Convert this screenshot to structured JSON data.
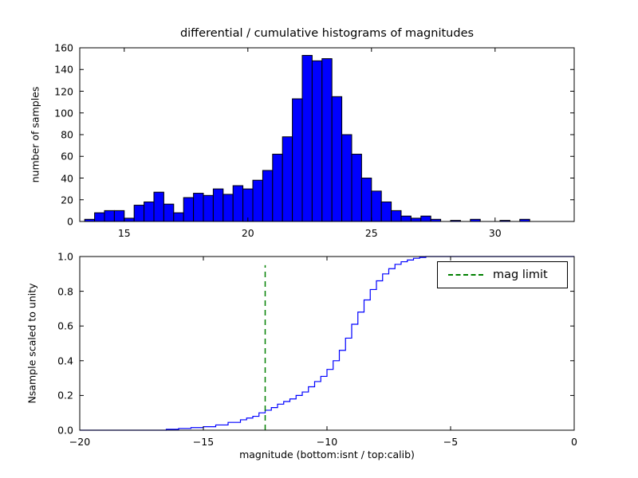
{
  "chart_data": [
    {
      "type": "bar",
      "subplot": "top",
      "title": "differential / cumulative histograms of magnitudes",
      "xlabel": "",
      "ylabel": "number of samples",
      "xlim": [
        13.2,
        33.2
      ],
      "ylim": [
        0,
        160
      ],
      "xticks": [
        15,
        20,
        25,
        30
      ],
      "xtick_labels": [
        "15",
        "20",
        "25",
        "30"
      ],
      "yticks": [
        0,
        20,
        40,
        60,
        80,
        100,
        120,
        140,
        160
      ],
      "ytick_labels": [
        "0",
        "20",
        "40",
        "60",
        "80",
        "100",
        "120",
        "140",
        "160"
      ],
      "grid": false,
      "bar_color": "#0000ff",
      "bar_edge_color": "#000000",
      "bin_start": 13.4,
      "bin_width": 0.4,
      "values": [
        2,
        8,
        10,
        10,
        3,
        15,
        18,
        27,
        16,
        8,
        22,
        26,
        24,
        30,
        25,
        33,
        30,
        38,
        47,
        62,
        78,
        113,
        153,
        148,
        150,
        115,
        80,
        62,
        40,
        28,
        18,
        10,
        5,
        3,
        5,
        2,
        0,
        1,
        0,
        2,
        0,
        0,
        1,
        0,
        2,
        0,
        0,
        0
      ]
    },
    {
      "type": "line",
      "subplot": "bottom",
      "title": "",
      "xlabel": "magnitude (bottom:isnt / top:calib)",
      "ylabel": "Nsample scaled to unity",
      "xlim": [
        -20,
        0
      ],
      "ylim": [
        0.0,
        1.0
      ],
      "xticks": [
        -20,
        -15,
        -10,
        -5,
        0
      ],
      "xtick_labels": [
        "−20",
        "−15",
        "−10",
        "−5",
        "0"
      ],
      "yticks": [
        0.0,
        0.2,
        0.4,
        0.6,
        0.8,
        1.0
      ],
      "ytick_labels": [
        "0.0",
        "0.2",
        "0.4",
        "0.6",
        "0.8",
        "1.0"
      ],
      "grid": false,
      "line_color": "#0000ff",
      "step_points": [
        [
          -20,
          0
        ],
        [
          -17,
          0
        ],
        [
          -16.5,
          0.005
        ],
        [
          -16,
          0.01
        ],
        [
          -15.5,
          0.015
        ],
        [
          -15,
          0.02
        ],
        [
          -14.5,
          0.03
        ],
        [
          -14,
          0.045
        ],
        [
          -13.5,
          0.06
        ],
        [
          -13.25,
          0.07
        ],
        [
          -13,
          0.08
        ],
        [
          -12.75,
          0.1
        ],
        [
          -12.5,
          0.115
        ],
        [
          -12.25,
          0.13
        ],
        [
          -12,
          0.15
        ],
        [
          -11.75,
          0.165
        ],
        [
          -11.5,
          0.18
        ],
        [
          -11.25,
          0.2
        ],
        [
          -11,
          0.22
        ],
        [
          -10.75,
          0.25
        ],
        [
          -10.5,
          0.28
        ],
        [
          -10.25,
          0.31
        ],
        [
          -10,
          0.35
        ],
        [
          -9.75,
          0.4
        ],
        [
          -9.5,
          0.46
        ],
        [
          -9.25,
          0.53
        ],
        [
          -9,
          0.61
        ],
        [
          -8.75,
          0.68
        ],
        [
          -8.5,
          0.75
        ],
        [
          -8.25,
          0.81
        ],
        [
          -8,
          0.86
        ],
        [
          -7.75,
          0.9
        ],
        [
          -7.5,
          0.93
        ],
        [
          -7.25,
          0.955
        ],
        [
          -7,
          0.97
        ],
        [
          -6.75,
          0.98
        ],
        [
          -6.5,
          0.99
        ],
        [
          -6.25,
          0.995
        ],
        [
          -6,
          1.0
        ],
        [
          0,
          1.0
        ]
      ],
      "mag_limit": {
        "x": -12.5,
        "ymin": 0.0,
        "ymax": 0.95,
        "color": "#008000",
        "style": "dashed"
      },
      "legend": {
        "position": "upper right",
        "entries": [
          {
            "label": "mag limit",
            "color": "#008000",
            "linestyle": "dashed"
          }
        ]
      }
    }
  ]
}
